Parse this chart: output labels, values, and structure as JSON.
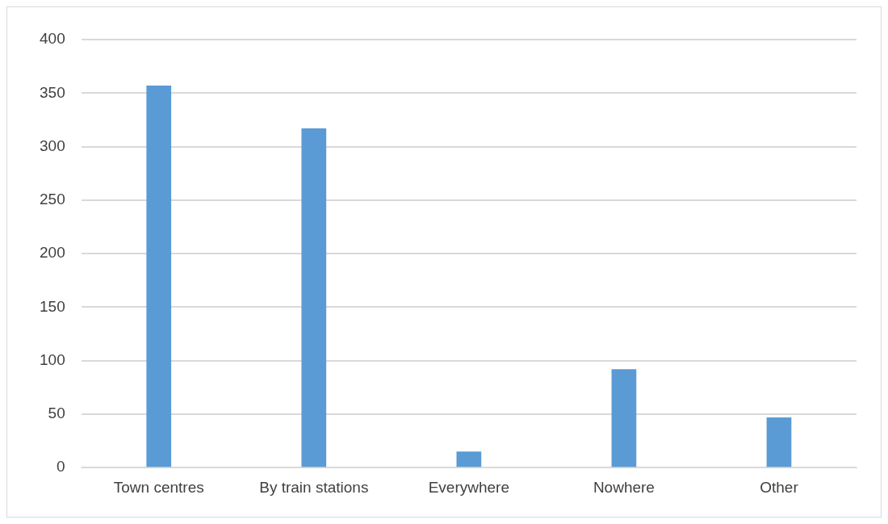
{
  "chart_data": {
    "type": "bar",
    "categories": [
      "Town centres",
      "By train stations",
      "Everywhere",
      "Nowhere",
      "Other"
    ],
    "values": [
      357,
      317,
      15,
      92,
      47
    ],
    "color": "#5b9bd5",
    "ylim": [
      0,
      400
    ],
    "yticks": [
      0,
      50,
      100,
      150,
      200,
      250,
      300,
      350,
      400
    ],
    "grid": "y"
  }
}
